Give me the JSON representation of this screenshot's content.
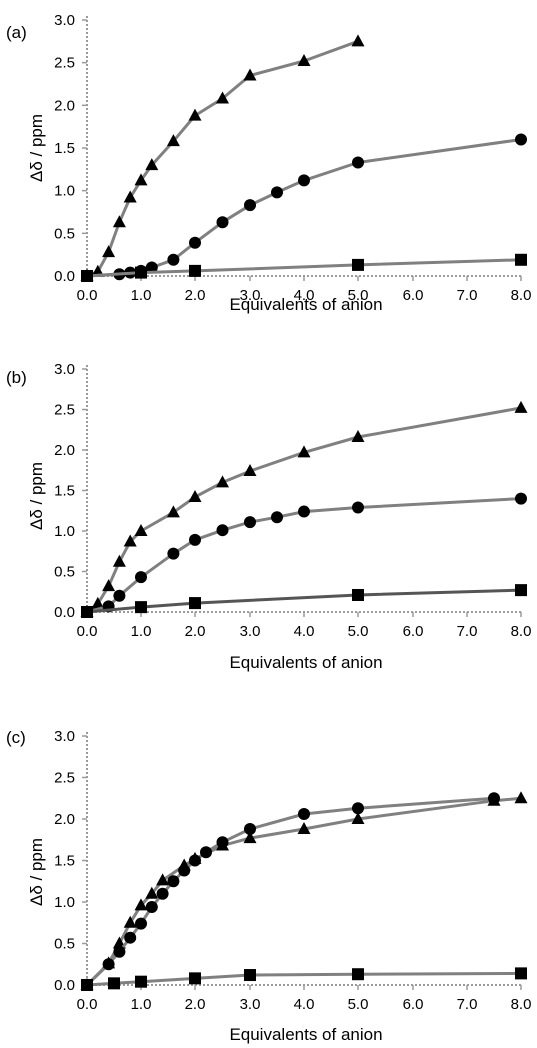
{
  "chart_data": [
    {
      "panel_label": "(a)",
      "type": "line",
      "xlabel": "Equivalents of anion",
      "ylabel": "Δδ / ppm",
      "x_ticks": [
        "0.0",
        "1.0",
        "2.0",
        "3.0",
        "4.0",
        "5.0",
        "6.0",
        "7.0",
        "8.0"
      ],
      "y_ticks": [
        "0.0",
        "0.5",
        "1.0",
        "1.5",
        "2.0",
        "2.5",
        "3.0"
      ],
      "xlim": [
        0,
        8
      ],
      "ylim": [
        0,
        3
      ],
      "series": [
        {
          "marker": "triangle",
          "color": "#808080",
          "points": [
            [
              0,
              0
            ],
            [
              0.2,
              0.05
            ],
            [
              0.4,
              0.28
            ],
            [
              0.6,
              0.63
            ],
            [
              0.8,
              0.92
            ],
            [
              1.0,
              1.12
            ],
            [
              1.2,
              1.3
            ],
            [
              1.6,
              1.58
            ],
            [
              2.0,
              1.88
            ],
            [
              2.5,
              2.08
            ],
            [
              3.0,
              2.35
            ],
            [
              4.0,
              2.52
            ],
            [
              5.0,
              2.75
            ]
          ]
        },
        {
          "marker": "circle",
          "color": "#808080",
          "points": [
            [
              0,
              0
            ],
            [
              0.6,
              0.02
            ],
            [
              0.8,
              0.04
            ],
            [
              1.0,
              0.06
            ],
            [
              1.2,
              0.1
            ],
            [
              1.6,
              0.19
            ],
            [
              2.0,
              0.39
            ],
            [
              2.5,
              0.63
            ],
            [
              3.0,
              0.83
            ],
            [
              3.5,
              0.98
            ],
            [
              4.0,
              1.12
            ],
            [
              5.0,
              1.33
            ],
            [
              8.0,
              1.6
            ]
          ]
        },
        {
          "marker": "square",
          "color": "#808080",
          "points": [
            [
              0,
              0
            ],
            [
              1.0,
              0.04
            ],
            [
              2.0,
              0.06
            ],
            [
              5.0,
              0.13
            ],
            [
              8.0,
              0.19
            ]
          ]
        }
      ]
    },
    {
      "panel_label": "(b)",
      "type": "line",
      "xlabel": "Equivalents of anion",
      "ylabel": "Δδ / ppm",
      "x_ticks": [
        "0.0",
        "1.0",
        "2.0",
        "3.0",
        "4.0",
        "5.0",
        "6.0",
        "7.0",
        "8.0"
      ],
      "y_ticks": [
        "0.0",
        "0.5",
        "1.0",
        "1.5",
        "2.0",
        "2.5",
        "3.0"
      ],
      "xlim": [
        0,
        8
      ],
      "ylim": [
        0,
        3
      ],
      "series": [
        {
          "marker": "triangle",
          "color": "#808080",
          "points": [
            [
              0,
              0
            ],
            [
              0.2,
              0.1
            ],
            [
              0.4,
              0.32
            ],
            [
              0.6,
              0.62
            ],
            [
              0.8,
              0.87
            ],
            [
              1.0,
              1.0
            ],
            [
              1.6,
              1.23
            ],
            [
              2.0,
              1.42
            ],
            [
              2.5,
              1.6
            ],
            [
              3.0,
              1.74
            ],
            [
              4.0,
              1.97
            ],
            [
              5.0,
              2.16
            ],
            [
              8.0,
              2.52
            ]
          ]
        },
        {
          "marker": "circle",
          "color": "#808080",
          "points": [
            [
              0,
              0
            ],
            [
              0.4,
              0.07
            ],
            [
              0.6,
              0.2
            ],
            [
              1.0,
              0.43
            ],
            [
              1.6,
              0.72
            ],
            [
              2.0,
              0.89
            ],
            [
              2.5,
              1.01
            ],
            [
              3.0,
              1.11
            ],
            [
              3.5,
              1.17
            ],
            [
              4.0,
              1.24
            ],
            [
              5.0,
              1.29
            ],
            [
              8.0,
              1.4
            ]
          ]
        },
        {
          "marker": "square",
          "color": "#555555",
          "points": [
            [
              0,
              0
            ],
            [
              1.0,
              0.06
            ],
            [
              2.0,
              0.11
            ],
            [
              5.0,
              0.21
            ],
            [
              8.0,
              0.27
            ]
          ]
        }
      ]
    },
    {
      "panel_label": "(c)",
      "type": "line",
      "xlabel": "Equivalents of anion",
      "ylabel": "Δδ / ppm",
      "x_ticks": [
        "0.0",
        "1.0",
        "2.0",
        "3.0",
        "4.0",
        "5.0",
        "6.0",
        "7.0",
        "8.0"
      ],
      "y_ticks": [
        "0.0",
        "0.5",
        "1.0",
        "1.5",
        "2.0",
        "2.5",
        "3.0"
      ],
      "xlim": [
        0,
        8
      ],
      "ylim": [
        0,
        3
      ],
      "series": [
        {
          "marker": "triangle",
          "color": "#808080",
          "points": [
            [
              0,
              0
            ],
            [
              0.4,
              0.26
            ],
            [
              0.6,
              0.5
            ],
            [
              0.8,
              0.75
            ],
            [
              1.0,
              0.96
            ],
            [
              1.2,
              1.1
            ],
            [
              1.4,
              1.26
            ],
            [
              1.8,
              1.44
            ],
            [
              2.0,
              1.52
            ],
            [
              2.5,
              1.68
            ],
            [
              3.0,
              1.77
            ],
            [
              4.0,
              1.88
            ],
            [
              5.0,
              2.0
            ],
            [
              7.5,
              2.22
            ],
            [
              8.0,
              2.25
            ]
          ]
        },
        {
          "marker": "circle",
          "color": "#808080",
          "points": [
            [
              0,
              0
            ],
            [
              0.4,
              0.25
            ],
            [
              0.6,
              0.4
            ],
            [
              0.8,
              0.57
            ],
            [
              1.0,
              0.74
            ],
            [
              1.2,
              0.94
            ],
            [
              1.4,
              1.1
            ],
            [
              1.6,
              1.25
            ],
            [
              1.8,
              1.38
            ],
            [
              2.0,
              1.5
            ],
            [
              2.2,
              1.6
            ],
            [
              2.5,
              1.72
            ],
            [
              3.0,
              1.88
            ],
            [
              4.0,
              2.06
            ],
            [
              5.0,
              2.13
            ],
            [
              7.5,
              2.25
            ]
          ]
        },
        {
          "marker": "square",
          "color": "#808080",
          "points": [
            [
              0,
              0
            ],
            [
              0.5,
              0.02
            ],
            [
              1.0,
              0.04
            ],
            [
              2.0,
              0.08
            ],
            [
              3.0,
              0.12
            ],
            [
              5.0,
              0.13
            ],
            [
              8.0,
              0.14
            ]
          ]
        }
      ]
    }
  ]
}
